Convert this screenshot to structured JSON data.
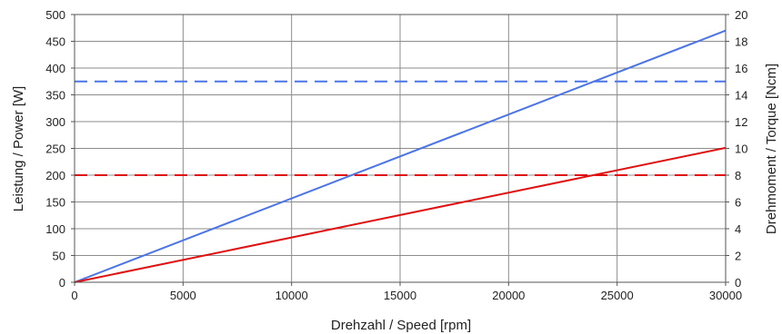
{
  "chart_data": {
    "type": "line",
    "title": "",
    "xlabel": "Drehzahl / Speed [rpm]",
    "ylabel_left": "Leistung / Power [W]",
    "ylabel_right": "Drehmoment / Torque [Ncm]",
    "xlim": [
      0,
      30000
    ],
    "ylim_left": [
      0,
      500
    ],
    "ylim_right": [
      0,
      20
    ],
    "x_ticks": [
      "0",
      "5000",
      "10000",
      "15000",
      "20000",
      "25000",
      "30000"
    ],
    "y_left_ticks": [
      "0",
      "50",
      "100",
      "150",
      "200",
      "250",
      "300",
      "350",
      "400",
      "450",
      "500"
    ],
    "y_right_ticks": [
      "0",
      "2",
      "4",
      "6",
      "8",
      "10",
      "12",
      "14",
      "16",
      "18",
      "20"
    ],
    "grid": true,
    "legend": "none",
    "series": [
      {
        "axis": "left",
        "style": "solid",
        "color": "#4a74e8",
        "x": [
          0,
          30000
        ],
        "y": [
          0,
          470
        ]
      },
      {
        "axis": "left",
        "style": "solid",
        "color": "#e01010",
        "x": [
          0,
          30000
        ],
        "y": [
          0,
          251
        ]
      },
      {
        "axis": "right",
        "style": "dashed",
        "color": "#4a74e8",
        "x": [
          0,
          30000
        ],
        "y": [
          15,
          15
        ]
      },
      {
        "axis": "right",
        "style": "dashed",
        "color": "#e01010",
        "x": [
          0,
          30000
        ],
        "y": [
          8,
          8
        ]
      }
    ]
  }
}
